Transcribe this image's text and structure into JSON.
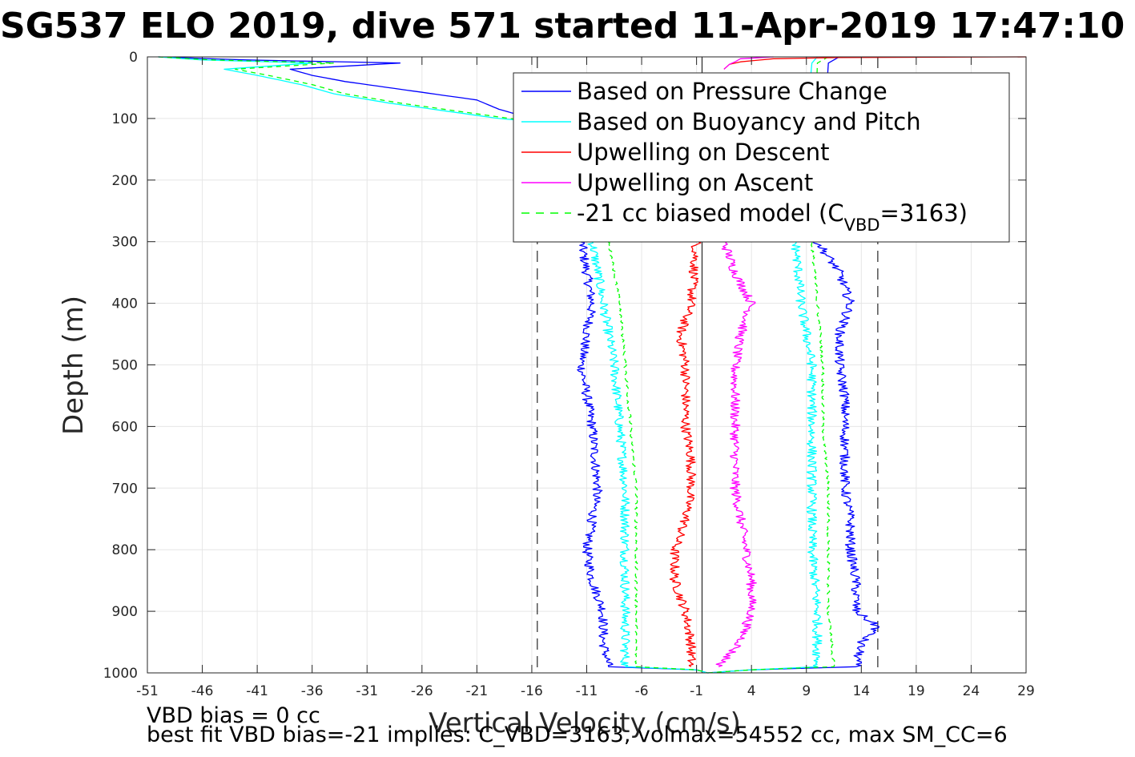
{
  "figure": {
    "title": "SG537 ELO 2019, dive 571 started 11-Apr-2019 17:47:10",
    "caption_line1": "VBD bias = 0 cc",
    "caption_line2": "best fit VBD bias=-21 implies: C_VBD=3163, volmax=54552 cc, max SM_CC=6"
  },
  "chart_data": {
    "type": "line",
    "title": "SG537 ELO 2019, dive 571 started 11-Apr-2019 17:47:10",
    "xlabel": "Vertical Velocity (cm/s)",
    "ylabel": "Depth (m)",
    "xlim": [
      -51,
      29
    ],
    "ylim": [
      0,
      1000
    ],
    "y_reversed": true,
    "grid": true,
    "legend_position": "top-right",
    "x_ticks": [
      "-51",
      "-46",
      "-41",
      "-36",
      "-31",
      "-26",
      "-21",
      "-16",
      "-11",
      "-6",
      "-1",
      "4",
      "9",
      "14",
      "19",
      "24",
      "29"
    ],
    "y_ticks": [
      "0",
      "100",
      "200",
      "300",
      "400",
      "500",
      "600",
      "700",
      "800",
      "900",
      "1000"
    ],
    "vertical_lines": [
      {
        "x": -15.5,
        "style": "dashed"
      },
      {
        "x": -0.5,
        "style": "solid"
      },
      {
        "x": 15.5,
        "style": "dashed"
      }
    ],
    "legend": {
      "items": [
        {
          "label": "Based on Pressure Change",
          "color": "#0000ff",
          "dash": "solid"
        },
        {
          "label": "Based on Buoyancy and Pitch",
          "color": "#00ffff",
          "dash": "solid"
        },
        {
          "label": "Upwelling on Descent",
          "color": "#ff0000",
          "dash": "solid"
        },
        {
          "label": "Upwelling on Ascent",
          "color": "#ff00ff",
          "dash": "solid"
        },
        {
          "label_prefix": "-21 cc biased model (C",
          "label_sub": "VBD",
          "label_suffix": "=3163)",
          "color": "#00ff00",
          "dash": "dashed"
        }
      ]
    },
    "series": [
      {
        "name": "Based on Pressure Change",
        "color": "#0000ff",
        "dash": "solid",
        "depth": [
          0,
          5,
          10,
          20,
          30,
          40,
          55,
          70,
          85,
          100,
          110,
          120,
          300,
          400,
          500,
          600,
          700,
          750,
          800,
          850,
          900,
          950,
          990,
          995,
          1000
        ],
        "x": [
          -50,
          -42,
          -28,
          -38,
          -36,
          -33,
          -27,
          -21,
          -19,
          -16,
          -11,
          -11,
          -11.5,
          -10.5,
          -11.5,
          -10.5,
          -10,
          -10.5,
          -11,
          -10.5,
          -9.5,
          -9.5,
          -9,
          -1,
          0
        ]
      },
      {
        "name": "Based on Buoyancy and Pitch",
        "color": "#00ffff",
        "dash": "solid",
        "depth": [
          0,
          5,
          10,
          20,
          30,
          45,
          60,
          75,
          90,
          100,
          110,
          120,
          300,
          400,
          500,
          600,
          700,
          800,
          900,
          990,
          995,
          1000
        ],
        "x": [
          -50,
          -46,
          -36,
          -44,
          -41,
          -37,
          -34,
          -29,
          -23,
          -19,
          -13,
          -11,
          -10.5,
          -9.5,
          -8.5,
          -8,
          -7.5,
          -7.5,
          -7.5,
          -7.5,
          -1,
          0
        ]
      },
      {
        "name": "Upwelling on Descent",
        "color": "#ff0000",
        "dash": "solid",
        "depth": [
          300,
          400,
          450,
          500,
          550,
          600,
          650,
          700,
          750,
          800,
          850,
          900,
          950,
          990
        ],
        "x": [
          -1,
          -1.5,
          -2.5,
          -2,
          -2,
          -2,
          -1.5,
          -1.5,
          -2,
          -3,
          -3,
          -2,
          -1.5,
          -1.5
        ]
      },
      {
        "name": "Upwelling on Ascent",
        "color": "#ff00ff",
        "dash": "solid",
        "depth": [
          300,
          350,
          400,
          450,
          500,
          550,
          600,
          650,
          700,
          750,
          800,
          850,
          900,
          950,
          990
        ],
        "x": [
          1.5,
          2.5,
          4,
          3,
          2.5,
          2.5,
          2.5,
          2.5,
          2.5,
          3,
          3.5,
          4,
          4,
          3,
          1
        ]
      },
      {
        "name": "-21 cc biased model (CVBD=3163)",
        "color": "#00ff00",
        "dash": "dashed",
        "depth": [
          0,
          5,
          10,
          20,
          30,
          45,
          60,
          75,
          90,
          100,
          110,
          120,
          300,
          400,
          500,
          600,
          700,
          800,
          900,
          990,
          995,
          1000
        ],
        "x": [
          -50,
          -45,
          -34,
          -43,
          -40,
          -36,
          -33,
          -28,
          -22,
          -18,
          -12,
          -10,
          -9,
          -8,
          -7.5,
          -7,
          -6.5,
          -6.5,
          -6.5,
          -6.5,
          -1,
          0
        ]
      },
      {
        "name": "Based on Pressure Change (ascent)",
        "color": "#0000ff",
        "dash": "solid",
        "depth": [
          0,
          10,
          300,
          350,
          400,
          450,
          500,
          550,
          600,
          650,
          700,
          750,
          800,
          850,
          900,
          925,
          950,
          990,
          995,
          1000
        ],
        "x": [
          12,
          11,
          10,
          12,
          13,
          12,
          12,
          12.5,
          12.5,
          12.5,
          12.5,
          13,
          13,
          13.5,
          13.5,
          15.5,
          14,
          13.5,
          4,
          0
        ]
      },
      {
        "name": "Based on Buoyancy and Pitch (ascent)",
        "color": "#00ffff",
        "dash": "solid",
        "depth": [
          0,
          10,
          300,
          400,
          500,
          600,
          700,
          800,
          900,
          990,
          995,
          1000
        ],
        "x": [
          10,
          9.5,
          8,
          8.5,
          9.5,
          9.5,
          9.5,
          9.5,
          10,
          10,
          4,
          0
        ]
      },
      {
        "name": "-21 cc biased model (ascent)",
        "color": "#00ff00",
        "dash": "dashed",
        "depth": [
          0,
          10,
          300,
          400,
          500,
          600,
          700,
          800,
          900,
          990,
          995,
          1000
        ],
        "x": [
          11,
          10,
          9.5,
          10,
          10.5,
          10.5,
          11,
          11,
          11,
          11.5,
          4,
          0
        ]
      },
      {
        "name": "Upwelling on Descent (surface)",
        "color": "#ff0000",
        "dash": "solid",
        "depth": [
          0,
          1,
          3,
          8,
          12,
          20
        ],
        "x": [
          29,
          12,
          6,
          3,
          2,
          1.5
        ]
      },
      {
        "name": "Upwelling on Ascent (surface)",
        "color": "#ff00ff",
        "dash": "solid",
        "depth": [
          0,
          3,
          8,
          12,
          20
        ],
        "x": [
          6,
          3,
          2.5,
          2,
          1.5
        ]
      }
    ]
  }
}
